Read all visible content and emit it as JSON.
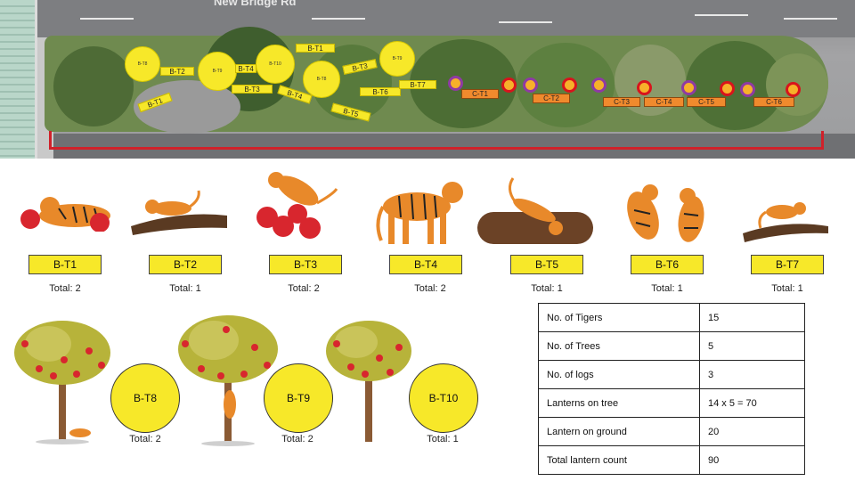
{
  "site_map": {
    "street_name": "New Bridge Rd",
    "circle_markers": [
      "B-T8",
      "B-T9",
      "B-T10",
      "B-T8",
      "B-T9"
    ],
    "tree_tags": [
      "B-T1",
      "B-T2",
      "B-T3",
      "B-T4",
      "B-T5",
      "B-T6",
      "B-T7"
    ],
    "lantern_tags": [
      "C-T1",
      "C-T2",
      "C-T3",
      "C-T4",
      "C-T5",
      "C-T6"
    ],
    "colors": {
      "marker_yellow": "#f7e829",
      "lantern_orange": "#f08a2d",
      "boundary_red": "#d0212a"
    }
  },
  "tiger_groups": [
    {
      "code": "B-T1",
      "total": "Total: 2",
      "icon": "tiger-lying-with-lanterns-icon"
    },
    {
      "code": "B-T2",
      "total": "Total: 1",
      "icon": "tiger-on-log-icon"
    },
    {
      "code": "B-T3",
      "total": "Total: 2",
      "icon": "tiger-pouncing-lanterns-icon"
    },
    {
      "code": "B-T4",
      "total": "Total: 2",
      "icon": "tiger-standing-icon"
    },
    {
      "code": "B-T5",
      "total": "Total: 1",
      "icon": "tiger-on-big-log-icon"
    },
    {
      "code": "B-T6",
      "total": "Total: 1",
      "icon": "tigers-playing-icon"
    },
    {
      "code": "B-T7",
      "total": "Total: 1",
      "icon": "tiger-on-branch-icon"
    }
  ],
  "tree_groups": [
    {
      "code": "B-T8",
      "total": "Total: 2",
      "icon": "lantern-tree-tiger-icon"
    },
    {
      "code": "B-T9",
      "total": "Total: 2",
      "icon": "lantern-tree-climbing-tiger-icon"
    },
    {
      "code": "B-T10",
      "total": "Total: 1",
      "icon": "lantern-tree-icon"
    }
  ],
  "summary_table": [
    {
      "label": "No. of Tigers",
      "value": "15"
    },
    {
      "label": "No. of Trees",
      "value": "5"
    },
    {
      "label": "No. of logs",
      "value": "3"
    },
    {
      "label": "Lanterns on tree",
      "value": "14 x 5 = 70"
    },
    {
      "label": "Lantern on ground",
      "value": "20"
    },
    {
      "label": "Total lantern count",
      "value": "90"
    }
  ]
}
